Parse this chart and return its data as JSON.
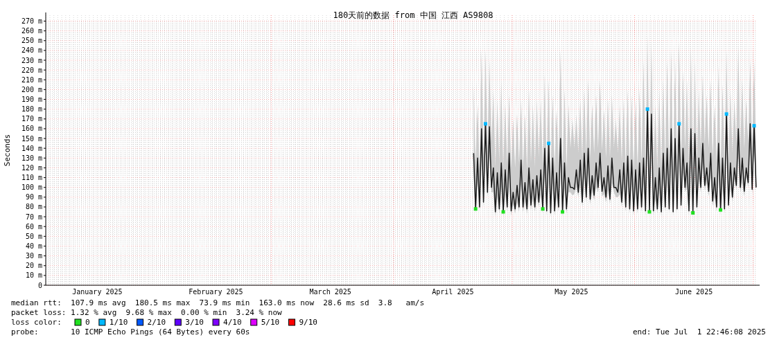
{
  "chart_data": {
    "type": "line",
    "title": "180天前的数据 from 中国 江西 AS9808",
    "ylabel": "Seconds",
    "legend_title": "loss color:",
    "legend": "bottom",
    "grid": true,
    "xlim": [
      "2025-01-02T22:46",
      "2025-07-01T22:46"
    ],
    "xticks": [
      {
        "value": "2025-01-16",
        "label": "January 2025"
      },
      {
        "value": "2025-02-15",
        "label": "February 2025"
      },
      {
        "value": "2025-03-16",
        "label": "March 2025"
      },
      {
        "value": "2025-04-16",
        "label": "April 2025"
      },
      {
        "value": "2025-05-16",
        "label": "May 2025"
      },
      {
        "value": "2025-06-16",
        "label": "June 2025"
      }
    ],
    "ylim": [
      0,
      276
    ],
    "yticks": [
      0,
      {
        "value": 10,
        "label": "10 m"
      },
      {
        "value": 20,
        "label": "20 m"
      },
      {
        "value": 30,
        "label": "30 m"
      },
      {
        "value": 40,
        "label": "40 m"
      },
      {
        "value": 50,
        "label": "50 m"
      },
      {
        "value": 60,
        "label": "60 m"
      },
      {
        "value": 70,
        "label": "70 m"
      },
      {
        "value": 80,
        "label": "80 m"
      },
      {
        "value": 90,
        "label": "90 m"
      },
      {
        "value": 100,
        "label": "100 m"
      },
      {
        "value": 110,
        "label": "110 m"
      },
      {
        "value": 120,
        "label": "120 m"
      },
      {
        "value": 130,
        "label": "130 m"
      },
      {
        "value": 140,
        "label": "140 m"
      },
      {
        "value": 150,
        "label": "150 m"
      },
      {
        "value": 160,
        "label": "160 m"
      },
      {
        "value": 170,
        "label": "170 m"
      },
      {
        "value": 180,
        "label": "180 m"
      },
      {
        "value": 190,
        "label": "190 m"
      },
      {
        "value": 200,
        "label": "200 m"
      },
      {
        "value": 210,
        "label": "210 m"
      },
      {
        "value": 220,
        "label": "220 m"
      },
      {
        "value": 230,
        "label": "230 m"
      },
      {
        "value": 240,
        "label": "240 m"
      },
      {
        "value": 250,
        "label": "250 m"
      },
      {
        "value": 260,
        "label": "260 m"
      },
      {
        "value": 270,
        "label": "270 m"
      }
    ],
    "ref_lines": [
      {
        "axis": "x",
        "value": "2025-03-01",
        "color": "#ff9999",
        "line_style": "dotted"
      },
      {
        "axis": "x",
        "value": "2025-04-01",
        "color": "#ff9999",
        "line_style": "dotted"
      },
      {
        "axis": "x",
        "value": "2025-05-01",
        "color": "#ff9999",
        "line_style": "dotted"
      },
      {
        "axis": "x",
        "value": "2025-06-01",
        "color": "#ff9999",
        "line_style": "dotted"
      },
      {
        "axis": "x",
        "value": "2025-07-01",
        "color": "#ff9999",
        "line_style": "dotted"
      }
    ],
    "series": [
      {
        "type": "line",
        "color": "#1a1a1a",
        "x": [
          "2025-04-21T06:00",
          "2025-04-21T18:00",
          "2025-04-22T06:00",
          "2025-04-22T18:00",
          "2025-04-23T06:00",
          "2025-04-23T18:00",
          "2025-04-24T06:00",
          "2025-04-24T18:00",
          "2025-04-25T06:00",
          "2025-04-25T18:00",
          "2025-04-26T06:00",
          "2025-04-26T18:00",
          "2025-04-27T06:00",
          "2025-04-27T18:00",
          "2025-04-28T06:00",
          "2025-04-28T18:00",
          "2025-04-29T06:00",
          "2025-04-29T18:00",
          "2025-04-30T06:00",
          "2025-04-30T18:00",
          "2025-05-01T06:00",
          "2025-05-01T18:00",
          "2025-05-02T06:00",
          "2025-05-02T18:00",
          "2025-05-03T06:00",
          "2025-05-03T18:00",
          "2025-05-04T06:00",
          "2025-05-04T18:00",
          "2025-05-05T06:00",
          "2025-05-05T18:00",
          "2025-05-06T06:00",
          "2025-05-06T18:00",
          "2025-05-07T06:00",
          "2025-05-07T18:00",
          "2025-05-08T06:00",
          "2025-05-08T18:00",
          "2025-05-09T06:00",
          "2025-05-09T18:00",
          "2025-05-10T06:00",
          "2025-05-10T18:00",
          "2025-05-11T06:00",
          "2025-05-11T18:00",
          "2025-05-12T06:00",
          "2025-05-12T18:00",
          "2025-05-13T06:00",
          "2025-05-13T18:00",
          "2025-05-14T06:00",
          "2025-05-14T18:00",
          "2025-05-15T06:00",
          "2025-05-15T18:00",
          "2025-05-16T06:00",
          "2025-05-16T18:00",
          "2025-05-17T06:00",
          "2025-05-17T18:00",
          "2025-05-18T06:00",
          "2025-05-18T18:00",
          "2025-05-19T06:00",
          "2025-05-19T18:00",
          "2025-05-20T06:00",
          "2025-05-20T18:00",
          "2025-05-21T06:00",
          "2025-05-21T18:00",
          "2025-05-22T06:00",
          "2025-05-22T18:00",
          "2025-05-23T06:00",
          "2025-05-23T18:00",
          "2025-05-24T06:00",
          "2025-05-24T18:00",
          "2025-05-25T06:00",
          "2025-05-25T18:00",
          "2025-05-26T06:00",
          "2025-05-26T18:00",
          "2025-05-27T06:00",
          "2025-05-27T18:00",
          "2025-05-28T06:00",
          "2025-05-28T18:00",
          "2025-05-29T06:00",
          "2025-05-29T18:00",
          "2025-05-30T06:00",
          "2025-05-30T18:00",
          "2025-05-31T06:00",
          "2025-05-31T18:00",
          "2025-06-01T06:00",
          "2025-06-01T18:00",
          "2025-06-02T06:00",
          "2025-06-02T18:00",
          "2025-06-03T06:00",
          "2025-06-03T18:00",
          "2025-06-04T06:00",
          "2025-06-04T18:00",
          "2025-06-05T06:00",
          "2025-06-05T18:00",
          "2025-06-06T06:00",
          "2025-06-06T18:00",
          "2025-06-07T06:00",
          "2025-06-07T18:00",
          "2025-06-08T06:00",
          "2025-06-08T18:00",
          "2025-06-09T06:00",
          "2025-06-09T18:00",
          "2025-06-10T06:00",
          "2025-06-10T18:00",
          "2025-06-11T06:00",
          "2025-06-11T18:00",
          "2025-06-12T06:00",
          "2025-06-12T18:00",
          "2025-06-13T06:00",
          "2025-06-13T18:00",
          "2025-06-14T06:00",
          "2025-06-14T18:00",
          "2025-06-15T06:00",
          "2025-06-15T18:00",
          "2025-06-16T06:00",
          "2025-06-16T18:00",
          "2025-06-17T06:00",
          "2025-06-17T18:00",
          "2025-06-18T06:00",
          "2025-06-18T18:00",
          "2025-06-19T06:00",
          "2025-06-19T18:00",
          "2025-06-20T06:00",
          "2025-06-20T18:00",
          "2025-06-21T06:00",
          "2025-06-21T18:00",
          "2025-06-22T06:00",
          "2025-06-22T18:00",
          "2025-06-23T06:00",
          "2025-06-23T18:00",
          "2025-06-24T06:00",
          "2025-06-24T18:00",
          "2025-06-25T06:00",
          "2025-06-25T18:00",
          "2025-06-26T06:00",
          "2025-06-26T18:00",
          "2025-06-27T06:00",
          "2025-06-27T18:00",
          "2025-06-28T06:00",
          "2025-06-28T18:00",
          "2025-06-29T06:00",
          "2025-06-29T18:00",
          "2025-06-30T06:00",
          "2025-06-30T18:00",
          "2025-07-01T06:00",
          "2025-07-01T18:00"
        ],
        "values": [
          135,
          78,
          130,
          80,
          160,
          85,
          165,
          95,
          162,
          100,
          120,
          75,
          115,
          78,
          125,
          75,
          118,
          80,
          135,
          76,
          95,
          78,
          102,
          80,
          128,
          80,
          105,
          78,
          120,
          82,
          108,
          80,
          112,
          85,
          118,
          78,
          140,
          76,
          145,
          74,
          130,
          76,
          115,
          80,
          150,
          75,
          125,
          78,
          110,
          100,
          100,
          98,
          118,
          95,
          128,
          85,
          135,
          90,
          140,
          88,
          112,
          92,
          125,
          100,
          135,
          96,
          110,
          90,
          122,
          88,
          130,
          100,
          100,
          95,
          118,
          85,
          125,
          80,
          132,
          78,
          128,
          76,
          118,
          78,
          125,
          80,
          130,
          76,
          180,
          75,
          175,
          76,
          110,
          78,
          120,
          75,
          135,
          80,
          140,
          78,
          160,
          75,
          150,
          78,
          165,
          82,
          140,
          100,
          125,
          76,
          160,
          74,
          155,
          80,
          130,
          100,
          145,
          102,
          120,
          96,
          135,
          86,
          110,
          80,
          145,
          77,
          130,
          78,
          175,
          82,
          125,
          90,
          120,
          102,
          160,
          100,
          130,
          96,
          120,
          105,
          165,
          98,
          163,
          100
        ],
        "upper": [
          205,
          125,
          185,
          120,
          240,
          130,
          240,
          140,
          230,
          145,
          200,
          120,
          190,
          125,
          210,
          120,
          185,
          125,
          195,
          120,
          170,
          120,
          175,
          125,
          190,
          120,
          175,
          118,
          200,
          125,
          185,
          120,
          190,
          130,
          190,
          120,
          215,
          118,
          210,
          115,
          195,
          120,
          180,
          125,
          240,
          118,
          200,
          120,
          185,
          140,
          170,
          140,
          175,
          135,
          190,
          130,
          200,
          135,
          210,
          130,
          185,
          135,
          195,
          140,
          210,
          138,
          180,
          130,
          190,
          130,
          195,
          140,
          170,
          135,
          185,
          125,
          190,
          120,
          200,
          120,
          195,
          118,
          190,
          120,
          200,
          125,
          230,
          118,
          255,
          120,
          250,
          120,
          185,
          118,
          200,
          118,
          210,
          125,
          230,
          120,
          240,
          118,
          230,
          120,
          250,
          125,
          220,
          140,
          210,
          118,
          245,
          115,
          230,
          125,
          200,
          140,
          215,
          145,
          195,
          140,
          210,
          130,
          185,
          125,
          225,
          120,
          205,
          120,
          240,
          125,
          200,
          135,
          190,
          145,
          245,
          140,
          210,
          140,
          190,
          145,
          230,
          140,
          230,
          140
        ],
        "lower": [
          110,
          73,
          105,
          75,
          135,
          80,
          140,
          90,
          137,
          95,
          95,
          70,
          90,
          73,
          100,
          70,
          93,
          75,
          110,
          71,
          82,
          73,
          85,
          75,
          103,
          75,
          85,
          73,
          95,
          77,
          88,
          75,
          90,
          80,
          93,
          73,
          115,
          71,
          120,
          69,
          105,
          71,
          90,
          75,
          125,
          70,
          100,
          73,
          95,
          95,
          92,
          93,
          100,
          90,
          103,
          80,
          110,
          85,
          115,
          83,
          95,
          87,
          100,
          95,
          110,
          91,
          93,
          85,
          97,
          83,
          105,
          95,
          90,
          90,
          93,
          80,
          100,
          75,
          107,
          73,
          103,
          71,
          93,
          73,
          100,
          75,
          105,
          71,
          155,
          70,
          150,
          71,
          88,
          73,
          95,
          70,
          110,
          75,
          115,
          73,
          135,
          70,
          125,
          73,
          140,
          77,
          115,
          95,
          100,
          71,
          135,
          69,
          130,
          75,
          108,
          95,
          120,
          97,
          104,
          91,
          110,
          81,
          90,
          75,
          120,
          72,
          105,
          73,
          150,
          77,
          100,
          85,
          108,
          97,
          135,
          95,
          105,
          91,
          110,
          100,
          140,
          93,
          138,
          95
        ]
      },
      {
        "type": "scatter",
        "name": "0",
        "color": "#20e020",
        "marker": "square",
        "x": [
          "2025-04-21T18:00",
          "2025-04-28T18:00",
          "2025-05-08T18:00",
          "2025-05-13T18:00",
          "2025-06-04T18:00",
          "2025-06-15T18:00",
          "2025-06-22T18:00"
        ],
        "values": [
          78,
          75,
          78,
          75,
          75,
          74,
          77
        ]
      },
      {
        "type": "scatter",
        "name": "1/10",
        "color": "#00b8ff",
        "marker": "square",
        "x": [
          "2025-04-24T06:00",
          "2025-05-10T06:00",
          "2025-06-04T06:00",
          "2025-06-12T06:00",
          "2025-06-24T06:00",
          "2025-07-01T06:00"
        ],
        "values": [
          165,
          145,
          180,
          165,
          175,
          163
        ]
      },
      {
        "type": "scatter",
        "name": "2/10",
        "color": "#0059ff",
        "marker": "square"
      },
      {
        "type": "scatter",
        "name": "3/10",
        "color": "#5e00ff",
        "marker": "square"
      },
      {
        "type": "scatter",
        "name": "4/10",
        "color": "#7e00ff",
        "marker": "square"
      },
      {
        "type": "scatter",
        "name": "5/10",
        "color": "#dd00ff",
        "marker": "square"
      },
      {
        "type": "scatter",
        "name": "9/10",
        "color": "#ff0000",
        "marker": "square"
      }
    ],
    "annotations": [
      "median rtt:  107.9 ms avg  180.5 ms max  73.9 ms min  163.0 ms now  28.6 ms sd  3.8   am/s",
      "packet loss: 1.32 % avg  9.68 % max  0.00 % min  3.24 % now",
      "probe:       10 ICMP Echo Pings (64 Bytes) every 60s",
      "end: Tue Jul  1 22:46:08 2025"
    ]
  }
}
